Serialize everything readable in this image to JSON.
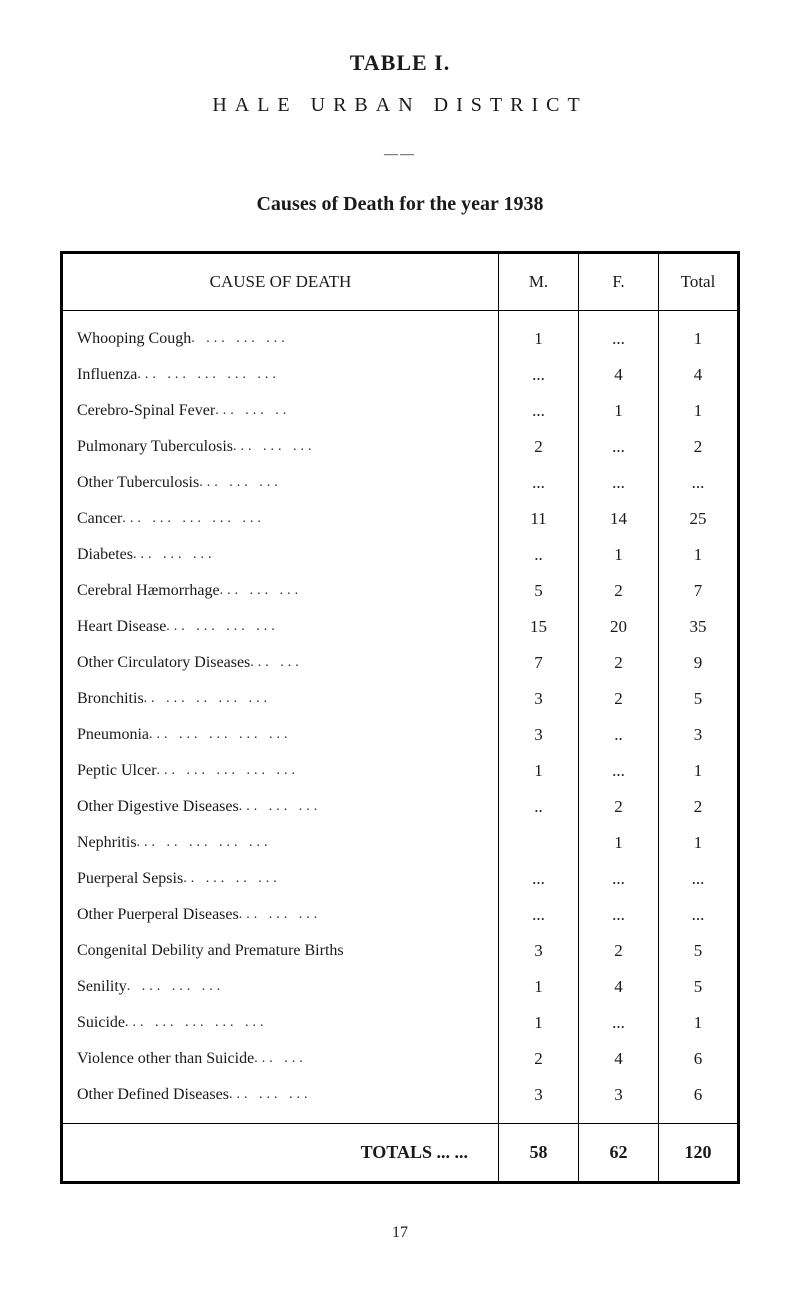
{
  "title_main": "TABLE I.",
  "title_sub": "HALE URBAN DISTRICT",
  "divider": "——",
  "title_section": "Causes of Death for the year 1938",
  "headers": {
    "cause": "CAUSE OF DEATH",
    "m": "M.",
    "f": "F.",
    "total": "Total"
  },
  "rows": [
    {
      "cause": "Whooping Cough",
      "dots": ".    ...   ...  ...",
      "m": "1",
      "f": "...",
      "total": "1"
    },
    {
      "cause": "Influenza",
      "dots": "...   ...   ...   ...   ...",
      "m": "...",
      "f": "4",
      "total": "4"
    },
    {
      "cause": "Cerebro-Spinal Fever",
      "dots": "...   ...   ..",
      "m": "...",
      "f": "1",
      "total": "1"
    },
    {
      "cause": "Pulmonary Tuberculosis",
      "dots": "...   ...   ...",
      "m": "2",
      "f": "...",
      "total": "2"
    },
    {
      "cause": "Other Tuberculosis",
      "dots": "...   ...   ...",
      "m": "...",
      "f": "...",
      "total": "..."
    },
    {
      "cause": "Cancer",
      "dots": "...   ...   ...   ...   ...",
      "m": "11",
      "f": "14",
      "total": "25"
    },
    {
      "cause": "Diabetes",
      "dots": "...         ...   ...",
      "m": "..",
      "f": "1",
      "total": "1"
    },
    {
      "cause": "Cerebral Hæmorrhage",
      "dots": "...   ...   ...",
      "m": "5",
      "f": "2",
      "total": "7"
    },
    {
      "cause": "Heart Disease",
      "dots": "...   ...   ...   ...",
      "m": "15",
      "f": "20",
      "total": "35"
    },
    {
      "cause": "Other Circulatory Diseases",
      "dots": "...   ...",
      "m": "7",
      "f": "2",
      "total": "9"
    },
    {
      "cause": "Bronchitis",
      "dots": "..   ...   ..   ...   ...",
      "m": "3",
      "f": "2",
      "total": "5"
    },
    {
      "cause": "Pneumonia",
      "dots": "...   ...   ...   ...   ...",
      "m": "3",
      "f": "..",
      "total": "3"
    },
    {
      "cause": "Peptic Ulcer",
      "dots": "...   ...   ...   ...   ...",
      "m": "1",
      "f": "...",
      "total": "1"
    },
    {
      "cause": "Other Digestive Diseases",
      "dots": "...   ...   ...",
      "m": "..",
      "f": "2",
      "total": "2"
    },
    {
      "cause": "Nephritis",
      "dots": "...   ..   ...   ...   ...",
      "m": "",
      "f": "1",
      "total": "1"
    },
    {
      "cause": "Puerperal Sepsis",
      "dots": "..   ...   ..   ...",
      "m": "...",
      "f": "...",
      "total": "..."
    },
    {
      "cause": "Other Puerperal Diseases",
      "dots": "...   ...   ...",
      "m": "...",
      "f": "...",
      "total": "..."
    },
    {
      "cause": "Congenital Debility and Premature Births",
      "dots": "",
      "m": "3",
      "f": "2",
      "total": "5"
    },
    {
      "cause": "Senility",
      "dots": ".   ...   ...   ...",
      "m": "1",
      "f": "4",
      "total": "5"
    },
    {
      "cause": "Suicide",
      "dots": "...   ...   ...   ...   ...",
      "m": "1",
      "f": "...",
      "total": "1"
    },
    {
      "cause": "Violence other than Suicide",
      "dots": "...   ...",
      "m": "2",
      "f": "4",
      "total": "6"
    },
    {
      "cause": "Other Defined Diseases",
      "dots": "...   ...   ...",
      "m": "3",
      "f": "3",
      "total": "6"
    }
  ],
  "totals": {
    "label": "TOTALS  ...   ...",
    "m": "58",
    "f": "62",
    "total": "120"
  },
  "page_number": "17"
}
